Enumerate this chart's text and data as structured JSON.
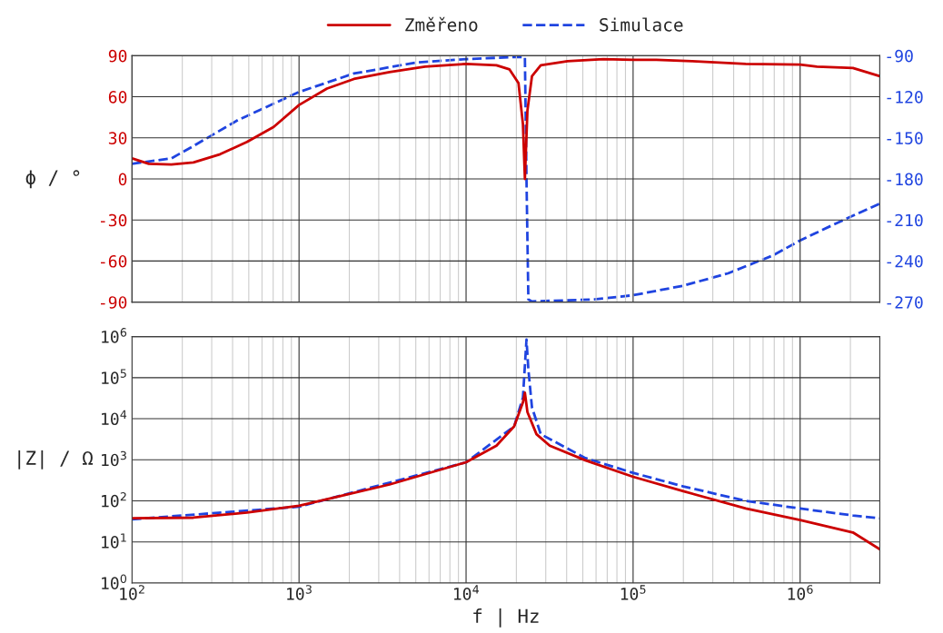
{
  "chart_data": [
    {
      "type": "line",
      "log": "x",
      "grid": true,
      "legend": "top",
      "tick_labels": "y",
      "ylabel": "ϕ / °",
      "xlim": [
        100,
        3000000
      ],
      "xticks": [
        100,
        1000,
        10000,
        100000,
        1000000
      ],
      "ylim": [
        -90,
        90
      ],
      "yticks": [
        -90,
        -60,
        -30,
        0,
        30,
        60,
        90
      ],
      "y2lim": [
        -270,
        -90
      ],
      "y2ticks": [
        -270,
        -240,
        -210,
        -180,
        -150,
        -120,
        -90
      ],
      "series": [
        {
          "name": "Změřeno",
          "color": "#cc0000",
          "line_style": "solid",
          "x": [
            100,
            126,
            172,
            233,
            337,
            488,
            705,
            1000,
            1470,
            2130,
            3480,
            5680,
            10000,
            15200,
            18200,
            20600,
            21900,
            22500,
            23300,
            24800,
            28000,
            40500,
            66200,
            100000,
            138000,
            226000,
            473000,
            1000000,
            1260000,
            2070000,
            3000000
          ],
          "values": [
            15,
            11,
            10.5,
            12,
            18,
            27,
            38,
            54,
            66,
            73,
            78,
            82,
            84,
            83,
            80,
            70,
            40,
            0,
            50,
            75,
            83,
            86,
            87.5,
            87,
            87,
            86,
            84,
            83.5,
            82,
            81,
            75
          ]
        },
        {
          "name": "Simulace",
          "color": "#1f44e0",
          "line_style": "dashed",
          "axis": "y2",
          "x": [
            100,
            172,
            233,
            431,
            1000,
            2130,
            5030,
            10000,
            19400,
            22500,
            23000,
            23600,
            24800,
            58600,
            100000,
            200000,
            370000,
            684000,
            1000000,
            1610000,
            3000000
          ],
          "values": [
            -169,
            -165,
            -156,
            -137,
            -116.5,
            -103,
            -95,
            -92.5,
            -91,
            -91,
            -180,
            -268,
            -269.5,
            -268,
            -265,
            -258,
            -249,
            -236,
            -225,
            -213,
            -198
          ]
        }
      ]
    },
    {
      "type": "line",
      "log": "xy",
      "grid": true,
      "xlabel": "f | Hz",
      "ylabel": "|Z| / Ω",
      "xlim": [
        100,
        3000000
      ],
      "xticks": [
        {
          "value": 100,
          "label": "10$^{2}$"
        },
        {
          "value": 1000,
          "label": "10$^{3}$"
        },
        {
          "value": 10000,
          "label": "10$^{4}$"
        },
        {
          "value": 100000,
          "label": "10$^{5}$"
        },
        {
          "value": 1000000,
          "label": "10$^{6}$"
        }
      ],
      "ylim": [
        1,
        1000000
      ],
      "yticks": [
        {
          "value": 1,
          "label": "10$^{0}$"
        },
        {
          "value": 10,
          "label": "10$^{1}$"
        },
        {
          "value": 100,
          "label": "10$^{2}$"
        },
        {
          "value": 1000,
          "label": "10$^{3}$"
        },
        {
          "value": 10000,
          "label": "10$^{4}$"
        },
        {
          "value": 100000,
          "label": "10$^{5}$"
        },
        {
          "value": 1000000,
          "label": "10$^{6}$"
        }
      ],
      "series": [
        {
          "color": "#1f44e0",
          "line_style": "dashed",
          "x": [
            100,
            1000,
            10000,
            19400,
            21900,
            23000,
            23600,
            24800,
            28000,
            51800,
            100000,
            200000,
            473000,
            1000000,
            2070000,
            3000000
          ],
          "values": [
            35.6,
            72,
            870,
            6500,
            33000,
            850000,
            160000,
            19000,
            4200,
            1100,
            480,
            225,
            100,
            65,
            44,
            37.7
          ]
        },
        {
          "color": "#cc0000",
          "line_style": "solid",
          "x": [
            100,
            233,
            488,
            1000,
            1660,
            3480,
            10000,
            15200,
            19400,
            21900,
            22500,
            23300,
            26400,
            31700,
            51800,
            100000,
            200000,
            473000,
            1000000,
            2070000,
            3000000
          ],
          "values": [
            37.7,
            39,
            52,
            76,
            124,
            250,
            870,
            2200,
            6500,
            25000,
            43000,
            14500,
            4200,
            2200,
            970,
            386,
            172,
            65,
            34,
            17,
            6.6
          ]
        }
      ]
    }
  ]
}
